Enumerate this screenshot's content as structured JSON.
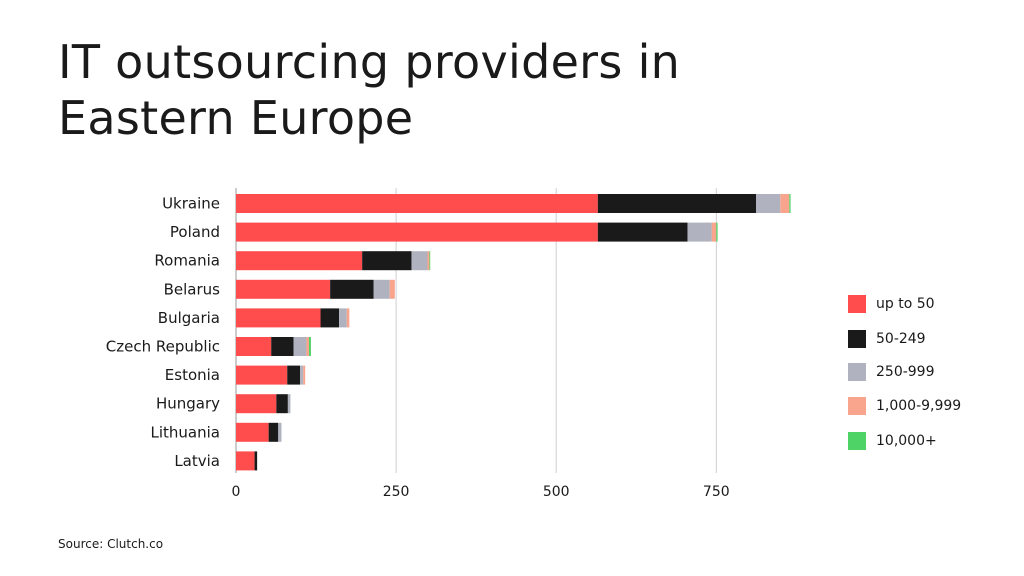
{
  "title": {
    "line1": "IT outsourcing providers in",
    "line2": "Eastern Europe"
  },
  "source": "Source: Clutch.co",
  "chart_data": {
    "type": "bar",
    "orientation": "horizontal",
    "stacked": true,
    "title": "IT outsourcing providers in Eastern Europe",
    "xlabel": "",
    "ylabel": "",
    "xlim": [
      0,
      870
    ],
    "xticks": [
      0,
      250,
      500,
      750
    ],
    "grid": true,
    "legend_position": "right",
    "categories": [
      "Ukraine",
      "Poland",
      "Romania",
      "Belarus",
      "Bulgaria",
      "Czech Republic",
      "Estonia",
      "Hungary",
      "Lithuania",
      "Latvia"
    ],
    "series": [
      {
        "name": "up to 50",
        "color": "#ff4d4d",
        "values": [
          565,
          565,
          197,
          147,
          132,
          55,
          80,
          63,
          51,
          29
        ]
      },
      {
        "name": "50-249",
        "color": "#1a1a1a",
        "values": [
          247,
          140,
          77,
          68,
          29,
          35,
          20,
          18,
          15,
          4
        ]
      },
      {
        "name": "250-999",
        "color": "#b0b3bf",
        "values": [
          38,
          38,
          25,
          25,
          12,
          20,
          5,
          4,
          5,
          0
        ]
      },
      {
        "name": "1,000-9,999",
        "color": "#f9a58e",
        "values": [
          14,
          7,
          3,
          8,
          4,
          4,
          3,
          0,
          0,
          0
        ]
      },
      {
        "name": "10,000+",
        "color": "#4ed466",
        "values": [
          2,
          2,
          1,
          0,
          0,
          3,
          0,
          0,
          0,
          0
        ]
      }
    ]
  }
}
